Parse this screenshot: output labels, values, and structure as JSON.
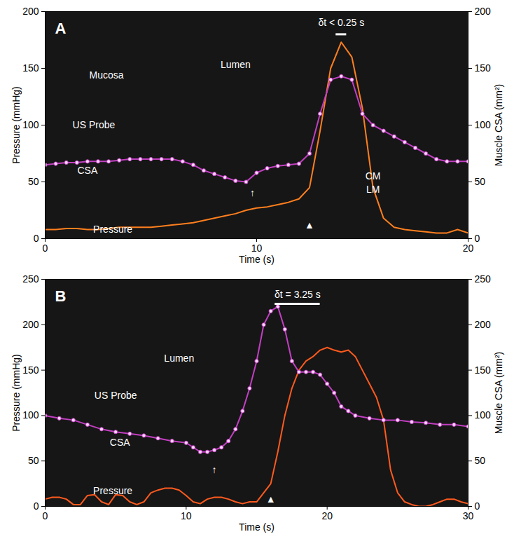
{
  "chart_data": [
    {
      "type": "line",
      "title": "A",
      "xlabel": "Time (s)",
      "ylabel": "Pressure (mmHg)",
      "y2label": "Muscle CSA (mm²)",
      "xlim": [
        0,
        20
      ],
      "xticks": [
        0,
        10,
        20
      ],
      "ylim": [
        0,
        200
      ],
      "yticks": [
        0,
        50,
        100,
        150,
        200
      ],
      "y2lim": [
        0,
        200
      ],
      "y2ticks": [
        0,
        50,
        100,
        150,
        200
      ],
      "series": [
        {
          "name": "Pressure",
          "color": "#ff7f1e",
          "line_style": "solid",
          "axis": "y",
          "x": [
            0,
            0.5,
            1,
            1.5,
            2,
            2.5,
            3,
            3.5,
            4,
            4.5,
            5,
            5.5,
            6,
            6.5,
            7,
            7.5,
            8,
            8.5,
            9,
            9.5,
            10,
            10.5,
            11,
            11.5,
            12,
            12.5,
            13,
            13.5,
            14,
            14.5,
            15,
            15.5,
            16,
            16.5,
            17,
            17.5,
            18,
            18.5,
            19,
            19.5,
            20
          ],
          "values": [
            8,
            8,
            9,
            9,
            8,
            8,
            9,
            10,
            10,
            10,
            10,
            11,
            12,
            13,
            14,
            16,
            18,
            20,
            22,
            25,
            27,
            28,
            30,
            32,
            35,
            45,
            95,
            150,
            173,
            160,
            115,
            45,
            18,
            10,
            8,
            7,
            6,
            5,
            5,
            8,
            5
          ]
        },
        {
          "name": "CSA",
          "color": "#c23fc2",
          "marker": "circle",
          "line_style": "solid",
          "axis": "y2",
          "x": [
            0,
            0.5,
            1,
            1.5,
            2,
            2.5,
            3,
            3.5,
            4,
            4.5,
            5,
            5.5,
            6,
            6.5,
            7,
            7.5,
            8,
            8.5,
            9,
            9.5,
            10,
            10.5,
            11,
            11.5,
            12,
            12.5,
            13,
            13.5,
            14,
            14.5,
            15,
            15.5,
            16,
            16.5,
            17,
            17.5,
            18,
            18.5,
            19,
            19.5,
            20
          ],
          "values": [
            65,
            66,
            67,
            67,
            68,
            68,
            68,
            69,
            70,
            70,
            70,
            70,
            70,
            68,
            65,
            60,
            57,
            54,
            51,
            50,
            58,
            62,
            64,
            65,
            66,
            75,
            110,
            140,
            143,
            140,
            110,
            100,
            95,
            90,
            85,
            80,
            75,
            70,
            68,
            68,
            68
          ]
        }
      ],
      "annotations": [
        {
          "text": "δt < 0.25 s",
          "x": 14,
          "y": 190
        },
        {
          "text": "Mucosa",
          "x": 2.9,
          "y": 144
        },
        {
          "text": "Lumen",
          "x": 9,
          "y": 153
        },
        {
          "text": "US Probe",
          "x": 2.3,
          "y": 100
        },
        {
          "text": "CSA",
          "x": 2,
          "y": 60
        },
        {
          "text": "Pressure",
          "x": 3.2,
          "y": 8
        },
        {
          "text": "CM",
          "x": 15.5,
          "y": 55
        },
        {
          "text": "LM",
          "x": 15.5,
          "y": 43
        },
        {
          "text": "↑",
          "x": 9.8,
          "y": 40
        },
        {
          "text": "▲",
          "x": 12.5,
          "y": 12
        }
      ],
      "brackets": [
        {
          "x1": 13.75,
          "x2": 14.25,
          "y": 180
        }
      ]
    },
    {
      "type": "line",
      "title": "B",
      "xlabel": "Time (s)",
      "ylabel": "Pressure (mmHg)",
      "y2label": "Muscle CSA (mm²)",
      "xlim": [
        0,
        30
      ],
      "xticks": [
        0,
        10,
        20,
        30
      ],
      "ylim": [
        0,
        250
      ],
      "yticks": [
        0,
        50,
        100,
        150,
        200,
        250
      ],
      "y2lim": [
        0,
        250
      ],
      "y2ticks": [
        0,
        50,
        100,
        150,
        200,
        250
      ],
      "series": [
        {
          "name": "Pressure",
          "color": "#ff5a1e",
          "line_style": "solid",
          "axis": "y",
          "x": [
            0,
            0.5,
            1,
            1.5,
            2,
            2.5,
            3,
            3.5,
            4,
            4.5,
            5,
            5.5,
            6,
            6.5,
            7,
            7.5,
            8,
            8.5,
            9,
            9.5,
            10,
            10.5,
            11,
            11.5,
            12,
            12.5,
            13,
            13.5,
            14,
            14.5,
            15,
            15.5,
            16,
            16.5,
            17,
            17.5,
            18,
            18.5,
            19,
            19.5,
            20,
            20.5,
            21,
            21.5,
            22,
            22.5,
            23,
            23.5,
            24,
            24.5,
            25,
            25.5,
            26,
            26.5,
            27,
            27.5,
            28,
            28.5,
            29,
            29.5,
            30
          ],
          "values": [
            8,
            10,
            10,
            8,
            2,
            2,
            12,
            13,
            5,
            2,
            13,
            12,
            5,
            2,
            5,
            15,
            18,
            20,
            20,
            18,
            12,
            5,
            3,
            8,
            10,
            10,
            8,
            5,
            3,
            5,
            5,
            15,
            25,
            60,
            100,
            130,
            150,
            160,
            165,
            172,
            175,
            172,
            170,
            172,
            165,
            150,
            135,
            120,
            95,
            40,
            15,
            5,
            2,
            0,
            0,
            2,
            5,
            8,
            8,
            5,
            3
          ]
        },
        {
          "name": "CSA",
          "color": "#c23fc2",
          "marker": "circle",
          "line_style": "solid",
          "axis": "y2",
          "x": [
            0,
            1,
            2,
            3,
            4,
            5,
            6,
            7,
            8,
            9,
            10,
            10.5,
            11,
            11.5,
            12,
            12.5,
            13,
            13.5,
            14,
            14.5,
            15,
            15.5,
            16,
            16.5,
            17,
            17.5,
            18,
            18.5,
            19,
            19.5,
            20,
            20.5,
            21,
            21.5,
            22,
            23,
            24,
            25,
            26,
            27,
            28,
            29,
            30
          ],
          "values": [
            100,
            97,
            95,
            90,
            85,
            82,
            80,
            78,
            75,
            72,
            70,
            65,
            60,
            60,
            62,
            65,
            72,
            85,
            105,
            130,
            160,
            200,
            215,
            220,
            195,
            160,
            148,
            148,
            148,
            145,
            135,
            125,
            110,
            105,
            100,
            97,
            95,
            95,
            93,
            92,
            90,
            90,
            88
          ]
        }
      ],
      "annotations": [
        {
          "text": "δt = 3.25 s",
          "x": 17.9,
          "y": 233
        },
        {
          "text": "Lumen",
          "x": 9.5,
          "y": 163
        },
        {
          "text": "US Probe",
          "x": 5,
          "y": 122
        },
        {
          "text": "CSA",
          "x": 5.3,
          "y": 70
        },
        {
          "text": "Pressure",
          "x": 4.8,
          "y": 17
        },
        {
          "text": "↑",
          "x": 12,
          "y": 40
        },
        {
          "text": "▲",
          "x": 16,
          "y": 8
        }
      ],
      "brackets": [
        {
          "x1": 16.3,
          "x2": 19.5,
          "y": 223
        }
      ]
    }
  ]
}
